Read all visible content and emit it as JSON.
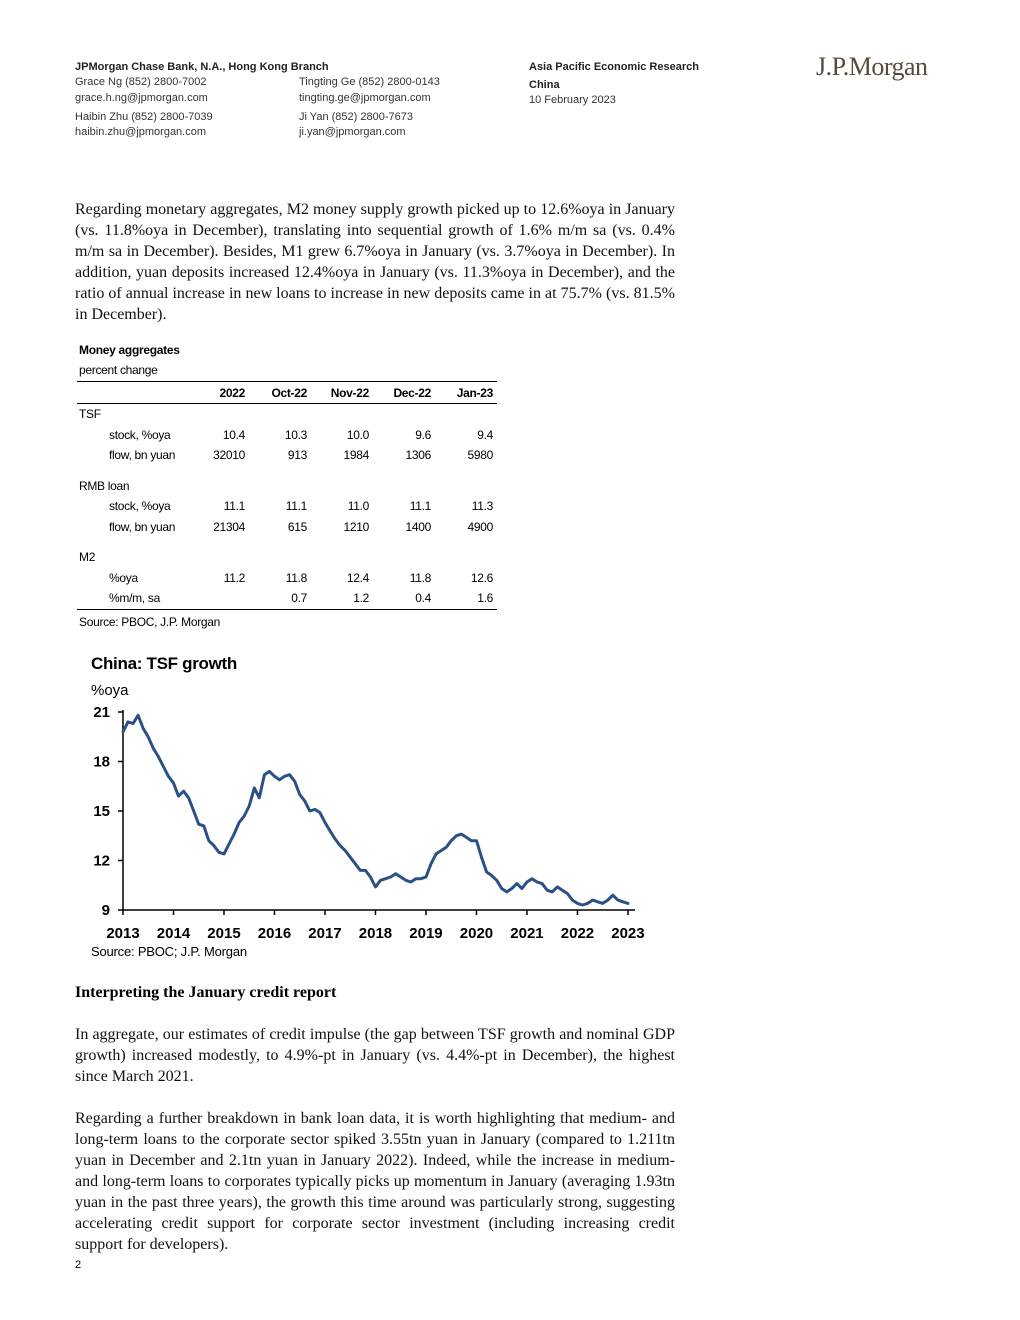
{
  "header": {
    "bank": "JPMorgan Chase Bank, N.A., Hong Kong Branch",
    "contacts": [
      {
        "name_phone": "Grace Ng (852) 2800-7002",
        "email": "grace.h.ng@jpmorgan.com"
      },
      {
        "name_phone": "Tingting Ge (852) 2800-0143",
        "email": "tingting.ge@jpmorgan.com"
      },
      {
        "name_phone": "Haibin Zhu (852) 2800-7039",
        "email": "haibin.zhu@jpmorgan.com"
      },
      {
        "name_phone": "Ji Yan (852) 2800-7673",
        "email": "ji.yan@jpmorgan.com"
      }
    ],
    "research": "Asia Pacific Economic Research",
    "region": "China",
    "date": "10 February 2023",
    "logo": "J.P.Morgan"
  },
  "para1": "Regarding monetary aggregates, M2 money supply growth picked up to 12.6%oya in January (vs. 11.8%oya in December), translating into sequential growth of 1.6% m/m sa (vs. 0.4% m/m sa in December). Besides, M1 grew 6.7%oya in January (vs. 3.7%oya in December). In addition, yuan deposits increased 12.4%oya in January (vs. 11.3%oya in December), and the ratio of annual increase in new loans to increase in new deposits came in at 75.7% (vs. 81.5% in December).",
  "table": {
    "title": "Money aggregates",
    "subtitle": "percent change",
    "columns": [
      "2022",
      "Oct-22",
      "Nov-22",
      "Dec-22",
      "Jan-23"
    ],
    "groups": [
      {
        "label": "TSF",
        "rows": [
          {
            "label": "stock, %oya",
            "values": [
              "10.4",
              "10.3",
              "10.0",
              "9.6",
              "9.4"
            ]
          },
          {
            "label": "flow, bn yuan",
            "values": [
              "32010",
              "913",
              "1984",
              "1306",
              "5980"
            ]
          }
        ]
      },
      {
        "label": "RMB loan",
        "rows": [
          {
            "label": "stock, %oya",
            "values": [
              "11.1",
              "11.1",
              "11.0",
              "11.1",
              "11.3"
            ]
          },
          {
            "label": "flow, bn yuan",
            "values": [
              "21304",
              "615",
              "1210",
              "1400",
              "4900"
            ]
          }
        ]
      },
      {
        "label": "M2",
        "rows": [
          {
            "label": "%oya",
            "values": [
              "11.2",
              "11.8",
              "12.4",
              "11.8",
              "12.6"
            ]
          },
          {
            "label": "%m/m, sa",
            "values": [
              "",
              "0.7",
              "1.2",
              "0.4",
              "1.6"
            ]
          }
        ]
      }
    ],
    "source": "Source: PBOC, J.P. Morgan"
  },
  "chart": {
    "title": "China: TSF growth",
    "unit": "%oya",
    "source": "Source: PBOC; J.P. Morgan"
  },
  "chart_data": {
    "type": "line",
    "title": "China: TSF growth",
    "ylabel": "%oya",
    "xlabel": "",
    "ylim": [
      9,
      21
    ],
    "yticks": [
      9,
      12,
      15,
      18,
      21
    ],
    "xlim": [
      2013.0,
      2023.1
    ],
    "xticks": [
      "2013",
      "2014",
      "2015",
      "2016",
      "2017",
      "2018",
      "2019",
      "2020",
      "2021",
      "2022",
      "2023"
    ],
    "color": "#2a5085",
    "series": [
      {
        "x": [
          2013.0,
          2013.1,
          2013.2,
          2013.3,
          2013.4,
          2013.5,
          2013.6,
          2013.7,
          2013.8,
          2013.9,
          2014.0,
          2014.1,
          2014.2,
          2014.3,
          2014.4,
          2014.5,
          2014.6,
          2014.7,
          2014.8,
          2014.9,
          2015.0,
          2015.1,
          2015.2,
          2015.3,
          2015.4,
          2015.5,
          2015.6,
          2015.7,
          2015.8,
          2015.9,
          2016.0,
          2016.1,
          2016.2,
          2016.3,
          2016.4,
          2016.5,
          2016.6,
          2016.7,
          2016.8,
          2016.9,
          2017.0,
          2017.1,
          2017.2,
          2017.3,
          2017.4,
          2017.5,
          2017.6,
          2017.7,
          2017.8,
          2017.9,
          2018.0,
          2018.1,
          2018.2,
          2018.3,
          2018.4,
          2018.5,
          2018.6,
          2018.7,
          2018.8,
          2018.9,
          2019.0,
          2019.1,
          2019.2,
          2019.3,
          2019.4,
          2019.5,
          2019.6,
          2019.7,
          2019.8,
          2019.9,
          2020.0,
          2020.1,
          2020.2,
          2020.3,
          2020.4,
          2020.5,
          2020.6,
          2020.7,
          2020.8,
          2020.9,
          2021.0,
          2021.1,
          2021.2,
          2021.3,
          2021.4,
          2021.5,
          2021.6,
          2021.7,
          2021.8,
          2021.9,
          2022.0,
          2022.1,
          2022.2,
          2022.3,
          2022.4,
          2022.5,
          2022.6,
          2022.7,
          2022.8,
          2022.9,
          2023.0
        ],
        "values": [
          19.8,
          20.4,
          20.3,
          20.8,
          20.0,
          19.5,
          18.8,
          18.3,
          17.7,
          17.1,
          16.7,
          15.9,
          16.2,
          15.8,
          15.0,
          14.2,
          14.1,
          13.2,
          12.9,
          12.5,
          12.4,
          13.0,
          13.6,
          14.3,
          14.7,
          15.3,
          16.4,
          15.8,
          17.2,
          17.4,
          17.1,
          16.9,
          17.1,
          17.2,
          16.8,
          16.0,
          15.6,
          15.0,
          15.1,
          14.9,
          14.3,
          13.8,
          13.3,
          12.9,
          12.6,
          12.2,
          11.8,
          11.4,
          11.4,
          11.0,
          10.4,
          10.8,
          10.9,
          11.0,
          11.2,
          11.0,
          10.8,
          10.7,
          10.9,
          10.9,
          11.0,
          11.8,
          12.4,
          12.6,
          12.8,
          13.2,
          13.5,
          13.6,
          13.4,
          13.2,
          13.2,
          12.2,
          11.3,
          11.1,
          10.8,
          10.3,
          10.1,
          10.3,
          10.6,
          10.3,
          10.7,
          10.9,
          10.7,
          10.6,
          10.2,
          10.1,
          10.4,
          10.2,
          10.0,
          9.6,
          9.4,
          9.3,
          9.4,
          9.6,
          9.5,
          9.4,
          9.6,
          9.9,
          9.6,
          9.5,
          9.4
        ]
      }
    ]
  },
  "section_heading": "Interpreting the January credit report",
  "para2": "In aggregate, our estimates of credit impulse (the gap between TSF growth and nominal GDP growth) increased modestly, to 4.9%-pt in January (vs. 4.4%-pt in December), the highest since March 2021.",
  "para3": "Regarding a further breakdown in bank loan data, it is worth highlighting that medium- and long-term loans to the corporate sector spiked 3.55tn yuan in January (compared to 1.211tn yuan in December and 2.1tn yuan in January 2022). Indeed, while the increase in medium- and long-term loans to corporates typically picks up momentum in January (averaging 1.93tn yuan in the past three years), the growth this time around was particularly strong, suggesting accelerating credit support for corporate sector investment (including increasing credit support for developers).",
  "page_number": "2"
}
